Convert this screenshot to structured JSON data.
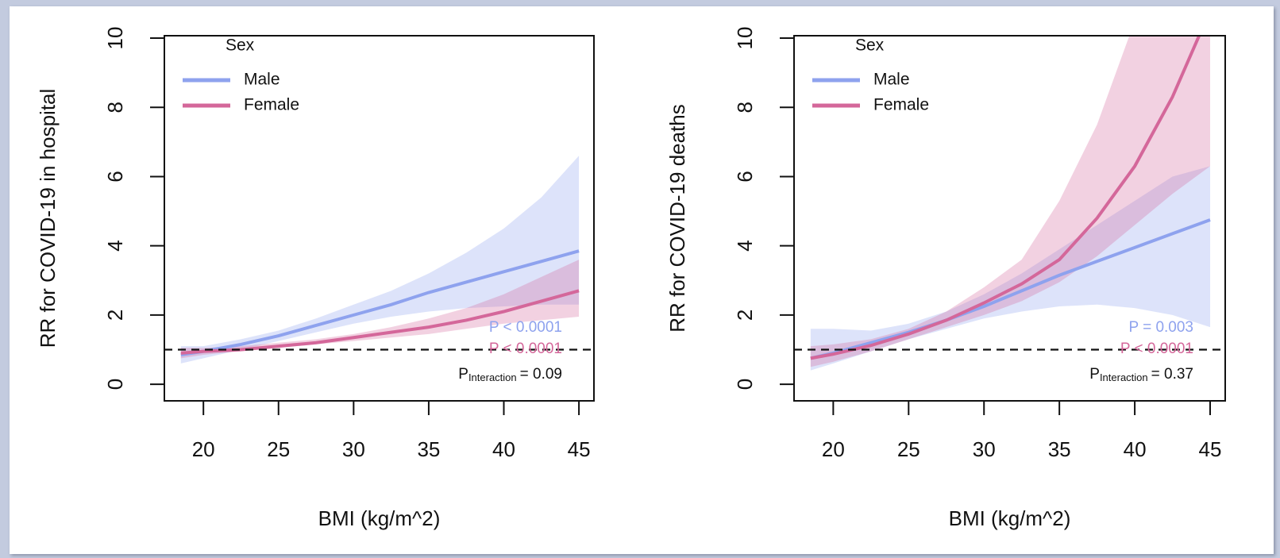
{
  "chart_data": [
    {
      "type": "line",
      "x_label": "BMI (kg/m^2)",
      "y_label": "RR for COVID-19 in hospital",
      "x": [
        18.5,
        20,
        22.5,
        25,
        27.5,
        30,
        32.5,
        35,
        37.5,
        40,
        42.5,
        45
      ],
      "xlim": [
        17.4,
        46
      ],
      "ylim": [
        -0.48,
        10.07
      ],
      "xticks": [
        20,
        25,
        30,
        35,
        40,
        45
      ],
      "yticks": [
        0,
        2,
        4,
        6,
        8,
        10
      ],
      "hline": 1,
      "legend_title": "Sex",
      "series": [
        {
          "name": "Male",
          "color": "#8ea2ee",
          "p_label": "P < 0.0001",
          "values": [
            0.85,
            0.95,
            1.15,
            1.4,
            1.7,
            2.0,
            2.3,
            2.65,
            2.95,
            3.25,
            3.55,
            3.85
          ],
          "lower": [
            0.6,
            0.75,
            1.0,
            1.25,
            1.5,
            1.75,
            1.95,
            2.1,
            2.2,
            2.25,
            2.3,
            2.3
          ],
          "upper": [
            1.1,
            1.1,
            1.3,
            1.55,
            1.9,
            2.3,
            2.7,
            3.2,
            3.8,
            4.5,
            5.4,
            6.6
          ]
        },
        {
          "name": "Female",
          "color": "#d4679a",
          "p_label": "P < 0.0001",
          "values": [
            0.9,
            0.95,
            1.0,
            1.1,
            1.2,
            1.35,
            1.5,
            1.65,
            1.85,
            2.1,
            2.4,
            2.7
          ],
          "lower": [
            0.75,
            0.85,
            0.95,
            1.05,
            1.15,
            1.25,
            1.35,
            1.45,
            1.6,
            1.75,
            1.85,
            1.95
          ],
          "upper": [
            1.05,
            1.05,
            1.1,
            1.2,
            1.3,
            1.45,
            1.65,
            1.9,
            2.2,
            2.6,
            3.1,
            3.6
          ]
        }
      ],
      "interaction": {
        "p": "P",
        "sub": "Interaction",
        "value": "= 0.09"
      }
    },
    {
      "type": "line",
      "x_label": "BMI (kg/m^2)",
      "y_label": "RR for COVID-19 deaths",
      "x": [
        18.5,
        20,
        22.5,
        25,
        27.5,
        30,
        32.5,
        35,
        37.5,
        40,
        42.5,
        45
      ],
      "xlim": [
        17.4,
        46
      ],
      "ylim": [
        -0.48,
        10.07
      ],
      "xticks": [
        20,
        25,
        30,
        35,
        40,
        45
      ],
      "yticks": [
        0,
        2,
        4,
        6,
        8,
        10
      ],
      "hline": 1,
      "legend_title": "Sex",
      "series": [
        {
          "name": "Male",
          "color": "#8ea2ee",
          "p_label": "P = 0.003",
          "values": [
            0.75,
            0.9,
            1.2,
            1.5,
            1.85,
            2.25,
            2.7,
            3.15,
            3.55,
            3.95,
            4.35,
            4.75
          ],
          "lower": [
            0.4,
            0.6,
            0.95,
            1.3,
            1.6,
            1.9,
            2.1,
            2.25,
            2.3,
            2.2,
            2.0,
            1.65
          ],
          "upper": [
            1.6,
            1.6,
            1.55,
            1.75,
            2.1,
            2.6,
            3.2,
            3.9,
            4.6,
            5.3,
            6.0,
            6.3
          ]
        },
        {
          "name": "Female",
          "color": "#d4679a",
          "p_label": "P < 0.0001",
          "values": [
            0.75,
            0.87,
            1.12,
            1.45,
            1.85,
            2.35,
            2.9,
            3.6,
            4.8,
            6.3,
            8.3,
            10.8
          ],
          "lower": [
            0.5,
            0.65,
            0.95,
            1.3,
            1.65,
            2.0,
            2.4,
            2.95,
            3.7,
            4.6,
            5.5,
            6.3
          ],
          "upper": [
            1.1,
            1.15,
            1.3,
            1.6,
            2.1,
            2.8,
            3.6,
            5.3,
            7.5,
            10.5,
            14,
            18
          ]
        }
      ],
      "interaction": {
        "p": "P",
        "sub": "Interaction",
        "value": "= 0.37"
      }
    }
  ]
}
